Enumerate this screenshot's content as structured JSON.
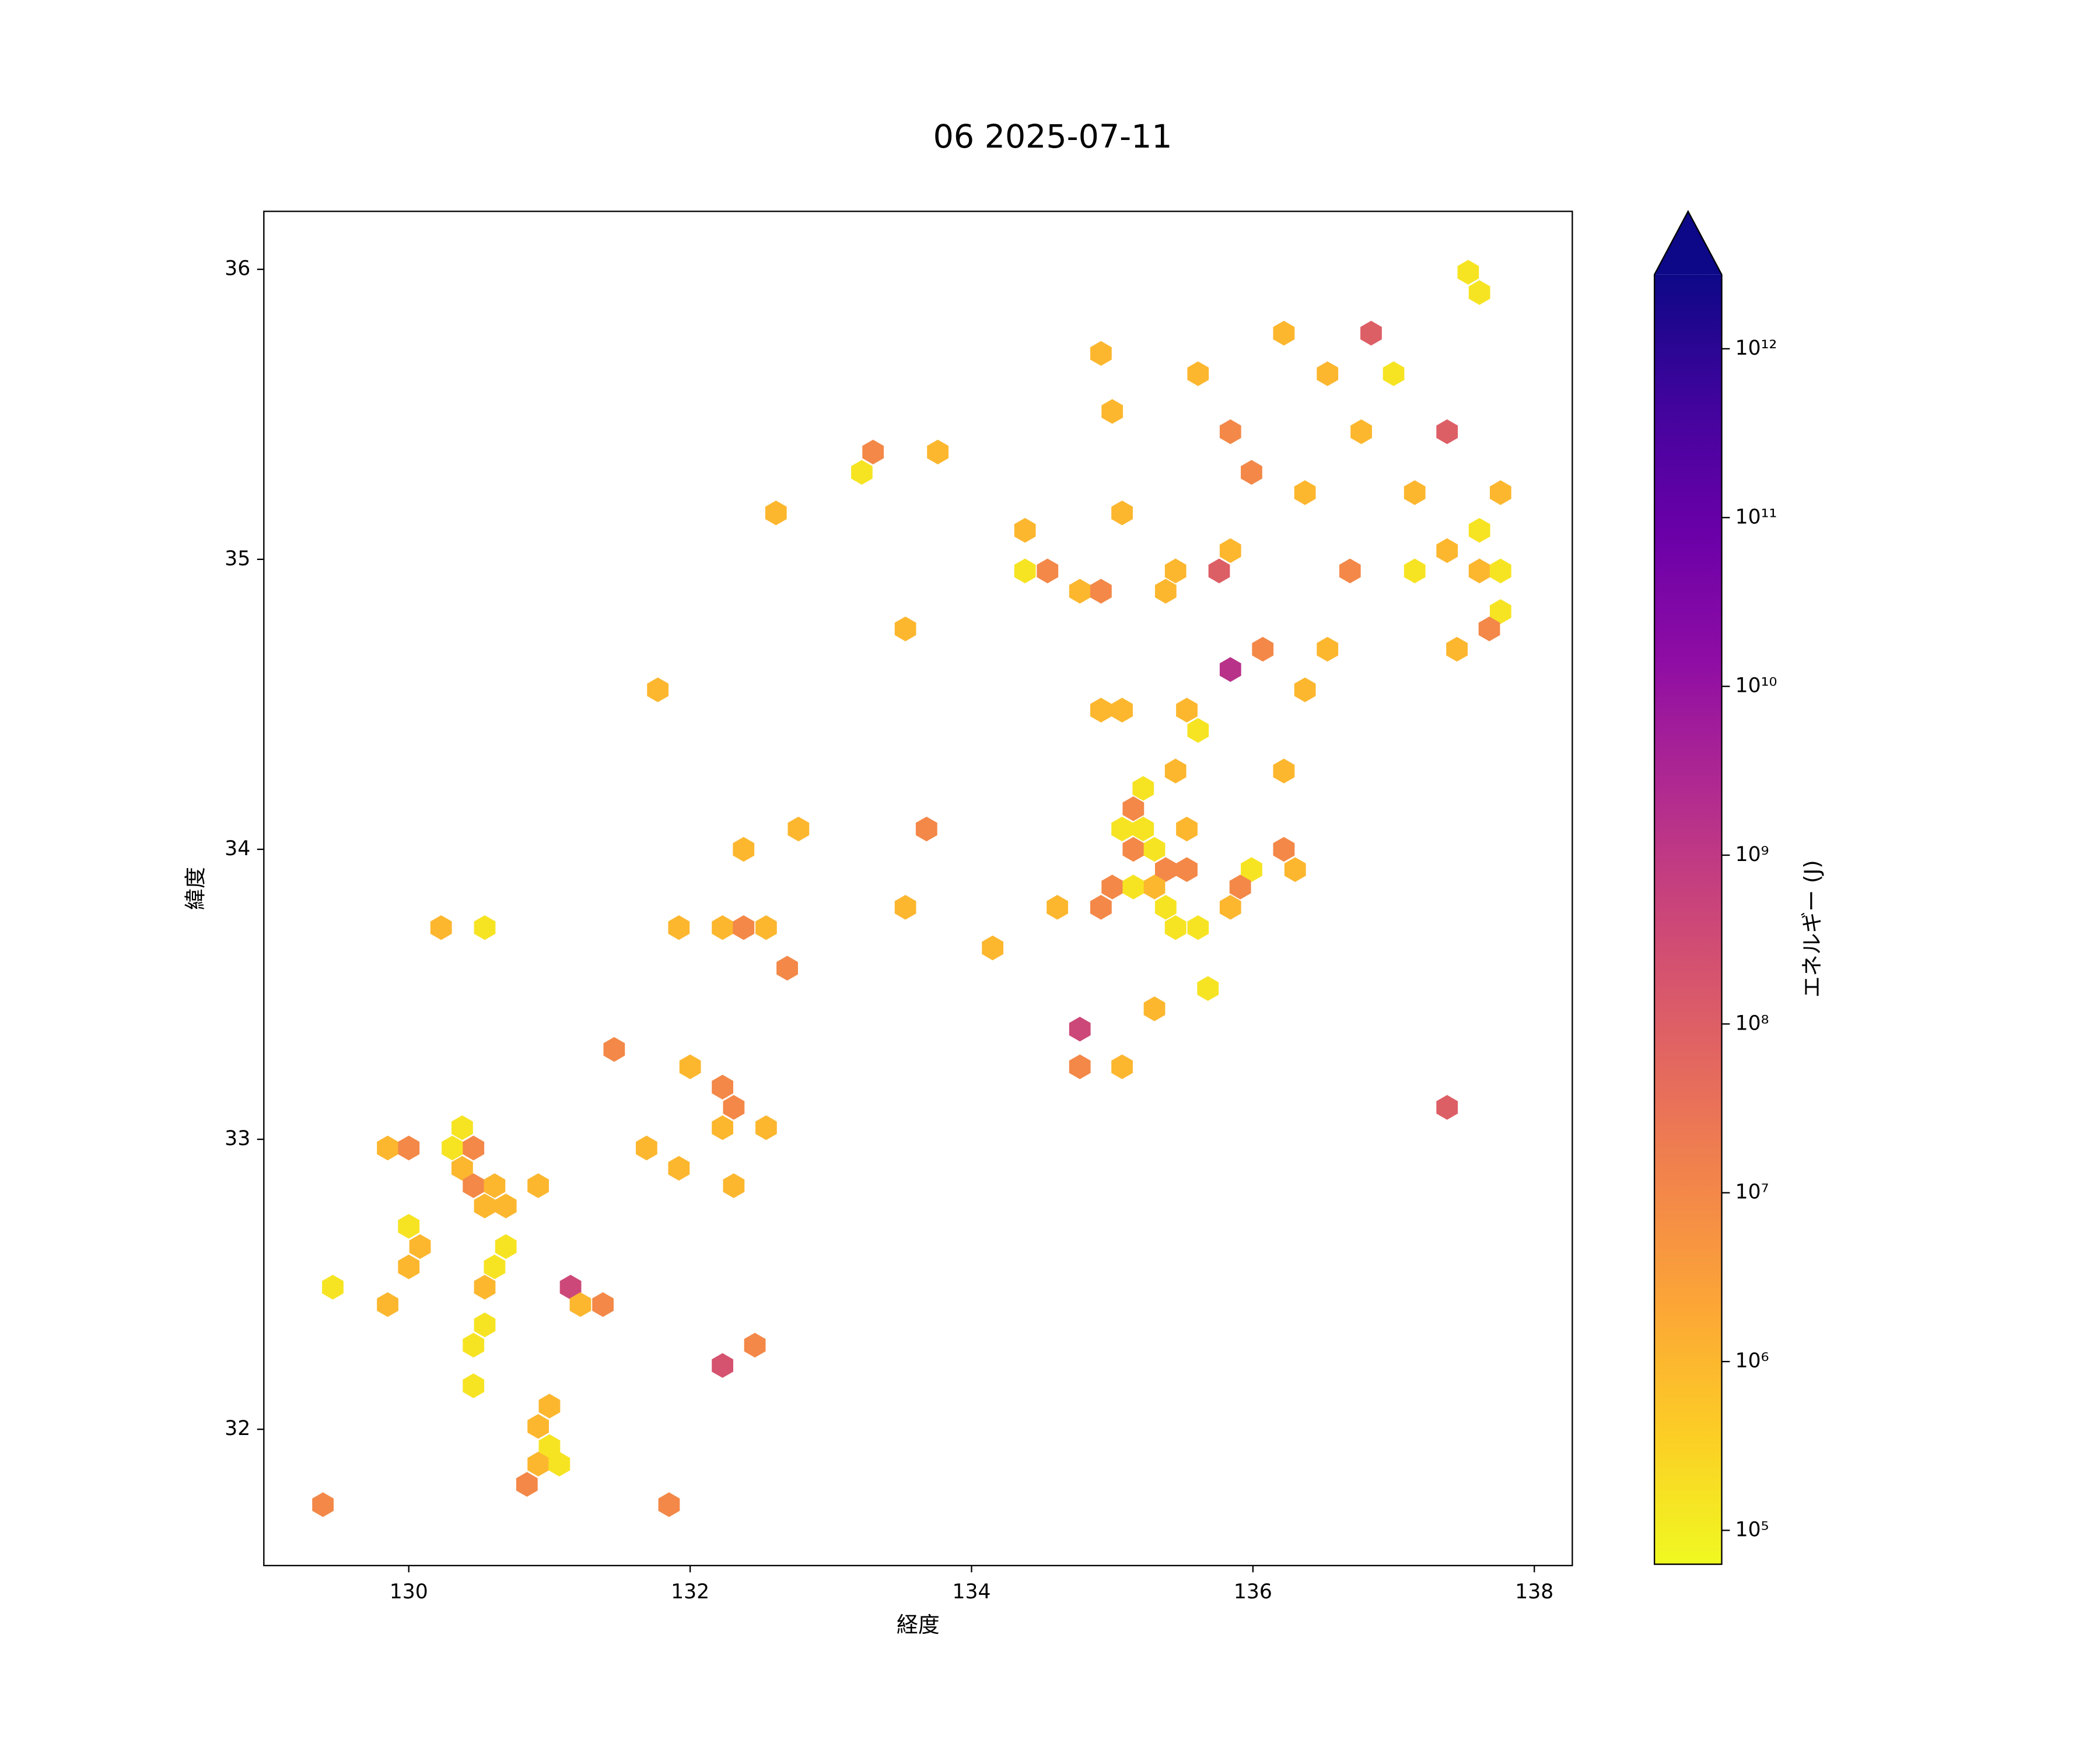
{
  "chart_data": {
    "type": "hexbin",
    "title": "06 2025-07-11",
    "x_label": "経度",
    "y_label": "緯度",
    "xlim": [
      128.97,
      138.27
    ],
    "ylim": [
      31.53,
      36.2
    ],
    "xticks": [
      130,
      132,
      134,
      136,
      138
    ],
    "yticks": [
      32,
      33,
      34,
      35,
      36
    ],
    "x": [
      137.53,
      137.61,
      136.22,
      136.84,
      134.92,
      135.61,
      136.53,
      137.0,
      135.0,
      135.84,
      136.77,
      137.38,
      133.3,
      133.76,
      133.22,
      135.99,
      136.37,
      137.15,
      137.76,
      132.61,
      135.07,
      134.38,
      137.61,
      135.84,
      137.38,
      134.38,
      134.54,
      135.45,
      135.76,
      136.69,
      137.15,
      137.61,
      137.76,
      134.77,
      134.92,
      135.38,
      137.76,
      133.53,
      137.68,
      136.07,
      136.53,
      137.45,
      135.84,
      131.77,
      136.37,
      134.92,
      135.07,
      135.53,
      135.61,
      135.45,
      136.22,
      135.22,
      135.15,
      132.77,
      133.68,
      135.07,
      135.22,
      135.53,
      132.38,
      135.15,
      135.3,
      136.22,
      135.38,
      135.53,
      135.99,
      136.3,
      135.0,
      135.15,
      135.3,
      135.91,
      133.53,
      134.61,
      134.92,
      135.38,
      135.84,
      130.23,
      130.54,
      131.92,
      132.23,
      132.38,
      132.54,
      135.45,
      135.61,
      134.15,
      132.69,
      135.68,
      135.3,
      134.77,
      131.46,
      132.0,
      134.77,
      135.07,
      132.23,
      132.31,
      137.38,
      130.38,
      132.23,
      132.54,
      129.85,
      130.0,
      130.31,
      130.46,
      131.69,
      130.38,
      131.92,
      130.46,
      130.61,
      130.92,
      132.31,
      130.54,
      130.69,
      130.0,
      130.08,
      130.69,
      130.0,
      130.61,
      129.46,
      130.54,
      131.15,
      129.85,
      131.22,
      131.38,
      130.54,
      130.46,
      132.46,
      132.23,
      130.46,
      131.0,
      130.92,
      131.0,
      130.92,
      131.07,
      130.84,
      129.39,
      131.85
    ],
    "y": [
      35.99,
      35.92,
      35.78,
      35.78,
      35.71,
      35.64,
      35.64,
      35.64,
      35.51,
      35.44,
      35.44,
      35.44,
      35.37,
      35.37,
      35.3,
      35.3,
      35.23,
      35.23,
      35.23,
      35.16,
      35.16,
      35.1,
      35.1,
      35.03,
      35.03,
      34.96,
      34.96,
      34.96,
      34.96,
      34.96,
      34.96,
      34.96,
      34.96,
      34.89,
      34.89,
      34.89,
      34.82,
      34.76,
      34.76,
      34.69,
      34.69,
      34.69,
      34.62,
      34.55,
      34.55,
      34.48,
      34.48,
      34.48,
      34.41,
      34.27,
      34.27,
      34.21,
      34.14,
      34.07,
      34.07,
      34.07,
      34.07,
      34.07,
      34.0,
      34.0,
      34.0,
      34.0,
      33.93,
      33.93,
      33.93,
      33.93,
      33.87,
      33.87,
      33.87,
      33.87,
      33.8,
      33.8,
      33.8,
      33.8,
      33.8,
      33.73,
      33.73,
      33.73,
      33.73,
      33.73,
      33.73,
      33.73,
      33.73,
      33.66,
      33.59,
      33.52,
      33.45,
      33.38,
      33.31,
      33.25,
      33.25,
      33.25,
      33.18,
      33.11,
      33.11,
      33.04,
      33.04,
      33.04,
      32.97,
      32.97,
      32.97,
      32.97,
      32.97,
      32.9,
      32.9,
      32.84,
      32.84,
      32.84,
      32.84,
      32.77,
      32.77,
      32.7,
      32.63,
      32.63,
      32.56,
      32.56,
      32.49,
      32.49,
      32.49,
      32.43,
      32.43,
      32.43,
      32.36,
      32.29,
      32.29,
      32.22,
      32.15,
      32.08,
      32.01,
      31.94,
      31.88,
      31.88,
      31.81,
      31.74,
      31.74
    ],
    "values": [
      150000,
      150000,
      1000000,
      100000000,
      1000000,
      1000000,
      1000000,
      150000,
      1000000,
      10000000,
      1000000,
      100000000,
      10000000,
      1000000,
      150000,
      10000000,
      1000000,
      1000000,
      1000000,
      1000000,
      1000000,
      1000000,
      150000,
      1000000,
      1000000,
      150000,
      10000000,
      1000000,
      100000000,
      10000000,
      150000,
      1000000,
      150000,
      1000000,
      10000000,
      1000000,
      150000,
      1000000,
      10000000,
      10000000,
      1000000,
      1000000,
      1500000000,
      1000000,
      1000000,
      1000000,
      1000000,
      1000000,
      150000,
      1000000,
      1000000,
      150000,
      10000000,
      1000000,
      10000000,
      150000,
      150000,
      1000000,
      1000000,
      10000000,
      150000,
      10000000,
      10000000,
      10000000,
      150000,
      1000000,
      10000000,
      150000,
      1000000,
      10000000,
      1000000,
      1000000,
      10000000,
      150000,
      1000000,
      1000000,
      150000,
      1000000,
      1000000,
      10000000,
      1000000,
      150000,
      150000,
      1000000,
      10000000,
      150000,
      1000000,
      400000000,
      10000000,
      1000000,
      10000000,
      1000000,
      10000000,
      10000000,
      100000000,
      150000,
      1000000,
      1000000,
      1000000,
      10000000,
      150000,
      10000000,
      1000000,
      1000000,
      1000000,
      10000000,
      1000000,
      1000000,
      1000000,
      1000000,
      1000000,
      150000,
      1000000,
      150000,
      1000000,
      150000,
      150000,
      1000000,
      400000000,
      1000000,
      1000000,
      10000000,
      150000,
      150000,
      10000000,
      200000000,
      150000,
      1000000,
      1000000,
      150000,
      1000000,
      150000,
      10000000,
      10000000,
      10000000
    ],
    "colorbar": {
      "label": "エネルギー (J)",
      "log": true,
      "colormap": "plasma_r",
      "extend": "max",
      "lim": [
        63000,
        2750000000000
      ],
      "ticks": [
        {
          "value": 100000,
          "label": "10⁵"
        },
        {
          "value": 1000000,
          "label": "10⁶"
        },
        {
          "value": 10000000,
          "label": "10⁷"
        },
        {
          "value": 100000000,
          "label": "10⁸"
        },
        {
          "value": 1000000000,
          "label": "10⁹"
        },
        {
          "value": 10000000000,
          "label": "10¹⁰"
        },
        {
          "value": 100000000000,
          "label": "10¹¹"
        },
        {
          "value": 1000000000000,
          "label": "10¹²"
        }
      ]
    }
  }
}
